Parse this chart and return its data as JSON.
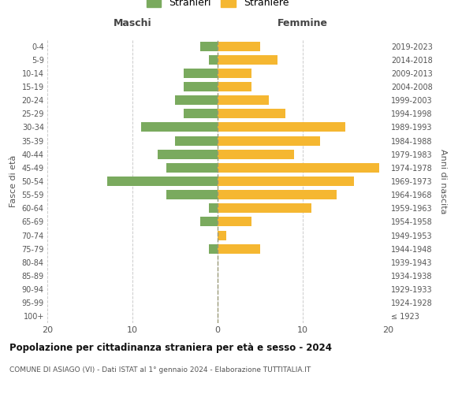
{
  "age_groups": [
    "100+",
    "95-99",
    "90-94",
    "85-89",
    "80-84",
    "75-79",
    "70-74",
    "65-69",
    "60-64",
    "55-59",
    "50-54",
    "45-49",
    "40-44",
    "35-39",
    "30-34",
    "25-29",
    "20-24",
    "15-19",
    "10-14",
    "5-9",
    "0-4"
  ],
  "birth_years": [
    "≤ 1923",
    "1924-1928",
    "1929-1933",
    "1934-1938",
    "1939-1943",
    "1944-1948",
    "1949-1953",
    "1954-1958",
    "1959-1963",
    "1964-1968",
    "1969-1973",
    "1974-1978",
    "1979-1983",
    "1984-1988",
    "1989-1993",
    "1994-1998",
    "1999-2003",
    "2004-2008",
    "2009-2013",
    "2014-2018",
    "2019-2023"
  ],
  "maschi": [
    0,
    0,
    0,
    0,
    0,
    1,
    0,
    2,
    1,
    6,
    13,
    6,
    7,
    5,
    9,
    4,
    5,
    4,
    4,
    1,
    2
  ],
  "femmine": [
    0,
    0,
    0,
    0,
    0,
    5,
    1,
    4,
    11,
    14,
    16,
    19,
    9,
    12,
    15,
    8,
    6,
    4,
    4,
    7,
    5
  ],
  "maschi_color": "#7aaa5e",
  "femmine_color": "#f5b731",
  "title": "Popolazione per cittadinanza straniera per età e sesso - 2024",
  "subtitle": "COMUNE DI ASIAGO (VI) - Dati ISTAT al 1° gennaio 2024 - Elaborazione TUTTITALIA.IT",
  "xlabel_left": "Maschi",
  "xlabel_right": "Femmine",
  "ylabel_left": "Fasce di età",
  "ylabel_right": "Anni di nascita",
  "legend_maschi": "Stranieri",
  "legend_femmine": "Straniere",
  "xlim": 20,
  "background_color": "#ffffff",
  "grid_color": "#cccccc"
}
